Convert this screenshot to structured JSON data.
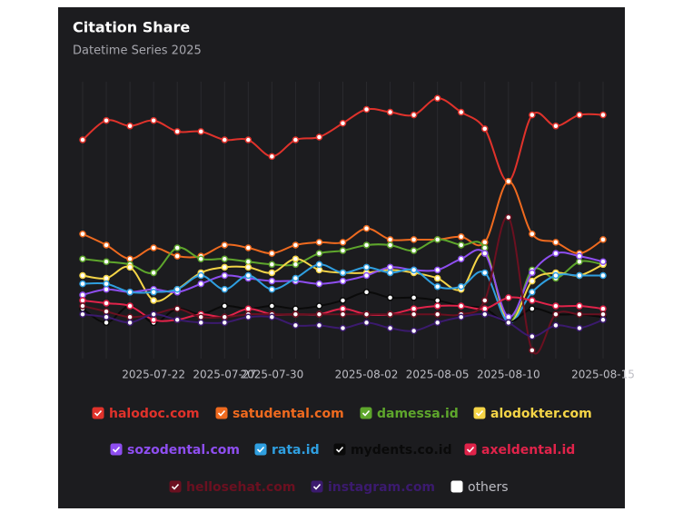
{
  "chart_data": {
    "type": "line",
    "title": "Citation Share",
    "subtitle": "Datetime Series 2025",
    "categories": [
      null,
      null,
      null,
      "2025-07-22",
      null,
      null,
      "2025-07-27",
      null,
      "2025-07-30",
      null,
      null,
      null,
      "2025-08-02",
      null,
      null,
      "2025-08-05",
      null,
      null,
      "2025-08-10",
      null,
      null,
      null,
      "2025-08-15"
    ],
    "ylim": [
      0,
      100
    ],
    "grid": true,
    "series": [
      {
        "name": "halodoc.com",
        "color": "#e0322b",
        "values": [
          79,
          86,
          84,
          86,
          82,
          82,
          79,
          79,
          73,
          79,
          80,
          85,
          90,
          89,
          88,
          94,
          89,
          83,
          64,
          88,
          84,
          88,
          88
        ]
      },
      {
        "name": "satudental.com",
        "color": "#ef6a1f",
        "values": [
          45,
          41,
          36,
          40,
          37,
          37,
          41,
          40,
          38,
          41,
          42,
          42,
          47,
          43,
          43,
          43,
          44,
          42,
          64,
          45,
          42,
          38,
          43
        ]
      },
      {
        "name": "damessa.id",
        "color": "#5ea62c",
        "values": [
          36,
          35,
          34,
          31,
          40,
          36,
          36,
          35,
          34,
          34,
          38,
          39,
          41,
          41,
          39,
          43,
          41,
          40,
          13,
          32,
          29,
          35,
          34
        ]
      },
      {
        "name": "alodokter.com",
        "color": "#f5d547",
        "values": [
          30,
          29,
          33,
          21,
          25,
          31,
          33,
          33,
          31,
          36,
          32,
          31,
          31,
          32,
          31,
          29,
          25,
          38,
          13,
          28,
          31,
          30,
          34
        ]
      },
      {
        "name": "sozodental.com",
        "color": "#8e4ef0",
        "values": [
          23,
          25,
          24,
          25,
          24,
          27,
          30,
          29,
          28,
          28,
          27,
          28,
          30,
          33,
          32,
          32,
          36,
          38,
          15,
          31,
          38,
          37,
          35
        ]
      },
      {
        "name": "rata.id",
        "color": "#2f9fe0",
        "values": [
          27,
          27,
          24,
          24,
          25,
          30,
          25,
          30,
          25,
          29,
          34,
          31,
          33,
          31,
          32,
          26,
          26,
          31,
          13,
          24,
          30,
          30,
          30
        ]
      },
      {
        "name": "mydents.co.id",
        "color": "#0a0a0a",
        "values": [
          18,
          13,
          19,
          13,
          18,
          16,
          19,
          18,
          19,
          18,
          19,
          21,
          24,
          22,
          22,
          21,
          19,
          18,
          13,
          18,
          16,
          16,
          15
        ]
      },
      {
        "name": "axeldental.id",
        "color": "#e0234a",
        "values": [
          21,
          20,
          19,
          14,
          14,
          16,
          15,
          18,
          16,
          16,
          16,
          18,
          16,
          16,
          18,
          19,
          19,
          18,
          22,
          21,
          19,
          19,
          18
        ]
      },
      {
        "name": "hellosehat.com",
        "color": "#6b1020",
        "values": [
          19,
          17,
          15,
          16,
          18,
          15,
          15,
          16,
          16,
          16,
          16,
          16,
          16,
          16,
          16,
          16,
          16,
          21,
          51,
          3,
          16,
          16,
          16
        ]
      },
      {
        "name": "instagram.com",
        "color": "#3b1a6e",
        "values": [
          16,
          15,
          13,
          16,
          14,
          13,
          13,
          15,
          15,
          12,
          12,
          11,
          13,
          11,
          10,
          13,
          15,
          16,
          13,
          8,
          12,
          11,
          14
        ]
      },
      {
        "name": "others",
        "color": "#ffffff",
        "visible": false
      }
    ]
  }
}
